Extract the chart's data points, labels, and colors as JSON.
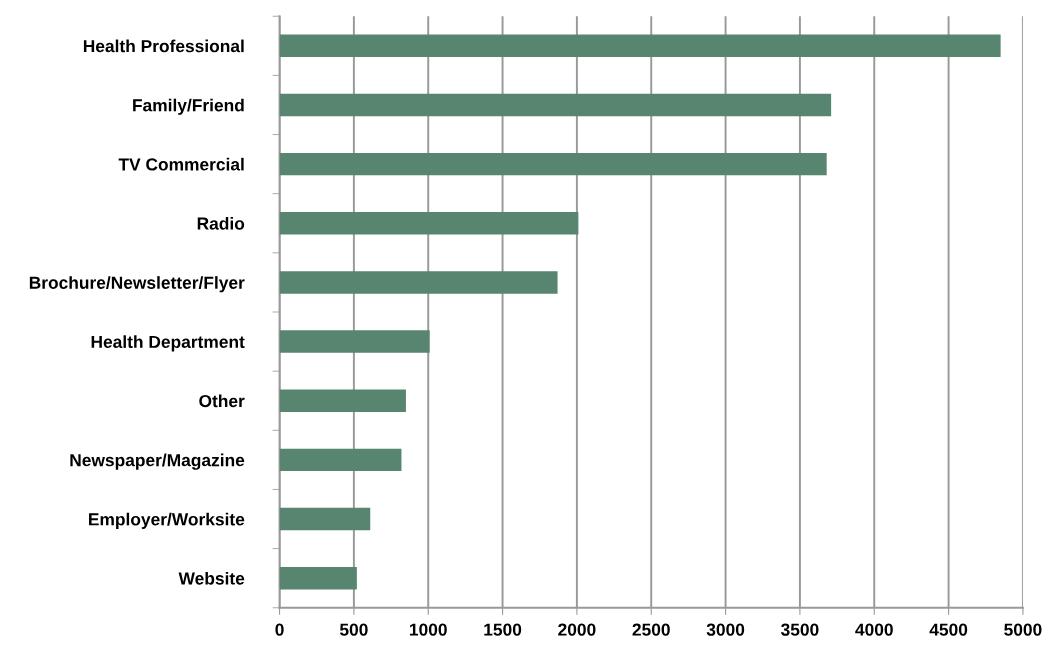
{
  "chart_data": {
    "type": "bar",
    "orientation": "horizontal",
    "categories": [
      "Health Professional",
      "Family/Friend",
      "TV Commercial",
      "Radio",
      "Brochure/Newsletter/Flyer",
      "Health Department",
      "Other",
      "Newspaper/Magazine",
      "Employer/Worksite",
      "Website"
    ],
    "values": [
      4850,
      3710,
      3680,
      2010,
      1870,
      1010,
      850,
      820,
      610,
      520
    ],
    "color": "#588570",
    "xlim": [
      0,
      5000
    ],
    "xticks": [
      0,
      500,
      1000,
      1500,
      2000,
      2500,
      3000,
      3500,
      4000,
      4500,
      5000
    ],
    "grid": "x"
  }
}
